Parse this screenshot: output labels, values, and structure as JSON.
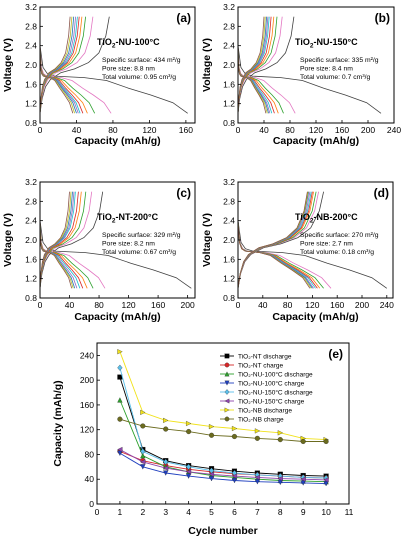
{
  "chart_data": [
    {
      "type": "line",
      "panel_label": "(a)",
      "title": "TiO2-NU-100°C",
      "title_main": "TiO",
      "title_sub": "2",
      "title_rest": "-NU-100°C",
      "annotations": [
        "Specific surface: 434 m²/g",
        "Pore size: 8.8 nm",
        "Total volume: 0.95 cm³/g"
      ],
      "xlabel": "Capacity (mAh/g)",
      "ylabel": "Voltage (V)",
      "xlim": [
        0,
        170
      ],
      "ylim": [
        0.8,
        3.2
      ],
      "xticks": [
        "0",
        "40",
        "80",
        "120",
        "160"
      ],
      "yticks": [
        "0.8",
        "1.2",
        "1.6",
        "2.0",
        "2.4",
        "2.8",
        "3.2"
      ],
      "discharge_capacities": [
        162,
        78,
        60,
        52,
        47,
        44,
        42,
        40,
        38,
        36
      ],
      "charge_capacities": [
        76,
        58,
        50,
        46,
        43,
        41,
        39,
        37,
        35,
        33
      ]
    },
    {
      "type": "line",
      "panel_label": "(b)",
      "title": "TiO2-NU-150°C",
      "title_main": "TiO",
      "title_sub": "2",
      "title_rest": "-NU-150°C",
      "annotations": [
        "Specific surface: 335 m²/g",
        "Pore size: 8.4 nm",
        "Total volume: 0.7 cm³/g"
      ],
      "xlabel": "Capacity (mAh/g)",
      "ylabel": "Voltage (V)",
      "xlim": [
        0,
        240
      ],
      "ylim": [
        0.8,
        3.2
      ],
      "xticks": [
        "0",
        "40",
        "80",
        "120",
        "160",
        "200",
        "240"
      ],
      "yticks": [
        "0.8",
        "1.2",
        "1.6",
        "2.0",
        "2.4",
        "2.8",
        "3.2"
      ],
      "discharge_capacities": [
        220,
        88,
        70,
        62,
        56,
        52,
        49,
        47,
        45,
        43
      ],
      "charge_capacities": [
        86,
        68,
        60,
        55,
        51,
        48,
        46,
        44,
        42,
        40
      ]
    },
    {
      "type": "line",
      "panel_label": "(c)",
      "title": "TiO2-NT-200°C",
      "title_main": "TiO",
      "title_sub": "2",
      "title_rest": "-NT-200°C",
      "annotations": [
        "Specific surface: 329 m²/g",
        "Pore size: 8.2 nm",
        "Total volume: 0.67 cm³/g"
      ],
      "xlabel": "Capacity (mAh/g)",
      "ylabel": "Voltage (V)",
      "xlim": [
        0,
        210
      ],
      "ylim": [
        0.8,
        3.2
      ],
      "xticks": [
        "0",
        "40",
        "80",
        "120",
        "160",
        "200"
      ],
      "yticks": [
        "0.8",
        "1.2",
        "1.6",
        "2.0",
        "2.4",
        "2.8",
        "3.2"
      ],
      "discharge_capacities": [
        205,
        88,
        72,
        64,
        58,
        54,
        50,
        47,
        45,
        43
      ],
      "charge_capacities": [
        85,
        70,
        62,
        56,
        52,
        48,
        46,
        44,
        42,
        40
      ]
    },
    {
      "type": "line",
      "panel_label": "(d)",
      "title": "TiO2-NB-200°C",
      "title_main": "TiO",
      "title_sub": "2",
      "title_rest": "-NB-200°C",
      "annotations": [
        "Specific surface: 270 m²/g",
        "Pore size: 2.7 nm",
        "Total volume: 0.18 cm³/g"
      ],
      "xlabel": "Capacity (mAh/g)",
      "ylabel": "Voltage (V)",
      "xlim": [
        0,
        250
      ],
      "ylim": [
        0.8,
        3.2
      ],
      "xticks": [
        "0",
        "40",
        "80",
        "120",
        "160",
        "200",
        "240"
      ],
      "yticks": [
        "0.8",
        "1.2",
        "1.6",
        "2.0",
        "2.4",
        "2.8",
        "3.2"
      ],
      "discharge_capacities": [
        240,
        150,
        138,
        132,
        128,
        125,
        122,
        120,
        118,
        116
      ],
      "charge_capacities": [
        138,
        130,
        126,
        122,
        120,
        118,
        116,
        114,
        113,
        112
      ]
    },
    {
      "type": "line",
      "panel_label": "(e)",
      "xlabel": "Cycle number",
      "ylabel": "Capacity (mAh/g)",
      "xlim": [
        0,
        11
      ],
      "ylim": [
        0,
        260
      ],
      "xticks": [
        "0",
        "1",
        "2",
        "3",
        "4",
        "5",
        "6",
        "7",
        "8",
        "9",
        "10",
        "11"
      ],
      "yticks": [
        "0",
        "40",
        "80",
        "120",
        "160",
        "200",
        "240"
      ],
      "x": [
        1,
        2,
        3,
        4,
        5,
        6,
        7,
        8,
        9,
        10
      ],
      "series": [
        {
          "name": "TiO₂-NT discharge",
          "color": "#000000",
          "marker": "square",
          "values": [
            205,
            88,
            70,
            62,
            57,
            53,
            50,
            48,
            46,
            45
          ]
        },
        {
          "name": "TiO₂-NT charge",
          "color": "#d62728",
          "marker": "circle",
          "values": [
            85,
            70,
            62,
            56,
            52,
            49,
            47,
            45,
            43,
            42
          ]
        },
        {
          "name": "TiO₂-NU-100°C discharge",
          "color": "#2ca02c",
          "marker": "triangle-up",
          "values": [
            168,
            78,
            60,
            52,
            46,
            43,
            40,
            38,
            37,
            36
          ]
        },
        {
          "name": "TiO₂-NU-100°C charge",
          "color": "#1f3fbf",
          "marker": "triangle-down",
          "values": [
            82,
            60,
            50,
            45,
            41,
            38,
            36,
            35,
            34,
            33
          ]
        },
        {
          "name": "TiO₂-NU-150°C discharge",
          "color": "#5bc0eb",
          "marker": "diamond",
          "values": [
            220,
            85,
            68,
            60,
            54,
            50,
            47,
            45,
            43,
            42
          ]
        },
        {
          "name": "TiO₂-NU-150°C charge",
          "color": "#8e44ad",
          "marker": "triangle-left",
          "values": [
            88,
            68,
            58,
            52,
            48,
            45,
            43,
            41,
            40,
            39
          ]
        },
        {
          "name": "TiO₂-NB discharge",
          "color": "#f1e21a",
          "marker": "triangle-right",
          "values": [
            246,
            148,
            135,
            130,
            125,
            122,
            118,
            115,
            106,
            104
          ]
        },
        {
          "name": "TiO₂-NB charge",
          "color": "#6b6b1f",
          "marker": "circle",
          "values": [
            137,
            126,
            121,
            117,
            111,
            109,
            106,
            104,
            101,
            101
          ]
        }
      ]
    }
  ],
  "cycle_colors": [
    "#404040",
    "#e377c2",
    "#2ca02c",
    "#ff7f0e",
    "#d62728",
    "#17becf",
    "#9467bd",
    "#1f77b4",
    "#bcbd22",
    "#8c564b"
  ]
}
